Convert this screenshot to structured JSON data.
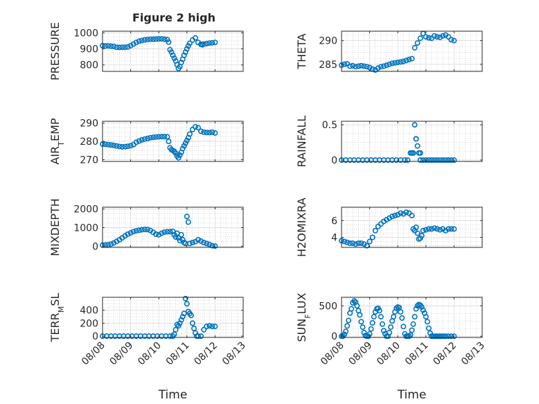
{
  "figure_title": "Figure 2 high",
  "colors": {
    "marker": "#0072BD",
    "axes": "#262626",
    "grid": "#bfbfbf",
    "background": "#ffffff"
  },
  "x_axis": {
    "label": "Time",
    "ticks": [
      "08/08",
      "08/09",
      "08/10",
      "08/11",
      "08/12",
      "08/13"
    ],
    "tick_values": [
      0,
      1,
      2,
      3,
      4,
      5
    ],
    "range": [
      0,
      5
    ]
  },
  "chart_data": [
    {
      "type": "scatter",
      "title": "Figure 2 high",
      "ylabel": "PRESSURE",
      "ylabel_sub": null,
      "ylim": [
        760,
        1010
      ],
      "yticks": [
        800,
        900,
        1000
      ],
      "grid": true,
      "marker": "open-circle",
      "x": [
        0.0,
        0.1,
        0.2,
        0.3,
        0.4,
        0.5,
        0.6,
        0.7,
        0.8,
        0.9,
        1.0,
        1.1,
        1.2,
        1.3,
        1.4,
        1.5,
        1.6,
        1.7,
        1.8,
        1.9,
        2.0,
        2.1,
        2.2,
        2.3,
        2.35,
        2.4,
        2.45,
        2.5,
        2.55,
        2.6,
        2.65,
        2.7,
        2.75,
        2.8,
        2.85,
        2.9,
        2.95,
        3.0,
        3.05,
        3.1,
        3.2,
        3.3,
        3.4,
        3.5,
        3.55,
        3.6,
        3.7,
        3.8,
        3.9,
        4.0
      ],
      "y": [
        920,
        918,
        919,
        917,
        915,
        910,
        909,
        910,
        910,
        912,
        920,
        930,
        940,
        948,
        952,
        956,
        958,
        960,
        960,
        961,
        962,
        962,
        960,
        958,
        942,
        895,
        880,
        860,
        842,
        825,
        802,
        778,
        790,
        815,
        835,
        860,
        880,
        900,
        918,
        935,
        955,
        968,
        940,
        928,
        925,
        930,
        933,
        936,
        938,
        940
      ]
    },
    {
      "type": "scatter",
      "ylabel": "THETA",
      "ylabel_sub": null,
      "ylim": [
        283.5,
        292
      ],
      "yticks": [
        285,
        290
      ],
      "grid": true,
      "marker": "open-circle",
      "x": [
        0.0,
        0.1,
        0.2,
        0.3,
        0.4,
        0.5,
        0.6,
        0.7,
        0.8,
        0.9,
        1.0,
        1.1,
        1.2,
        1.3,
        1.4,
        1.5,
        1.6,
        1.7,
        1.8,
        1.9,
        2.0,
        2.1,
        2.2,
        2.3,
        2.4,
        2.5,
        2.6,
        2.7,
        2.8,
        2.9,
        3.0,
        3.1,
        3.2,
        3.3,
        3.4,
        3.5,
        3.6,
        3.7,
        3.8,
        3.9,
        4.0
      ],
      "y": [
        284.8,
        285.0,
        285.1,
        284.6,
        284.7,
        284.5,
        284.6,
        284.7,
        284.6,
        284.5,
        284.3,
        284.0,
        283.8,
        284.2,
        284.5,
        284.6,
        284.8,
        285.0,
        285.2,
        285.3,
        285.4,
        285.5,
        285.6,
        285.8,
        286.0,
        286.2,
        288.5,
        289.5,
        290.5,
        291.5,
        290.8,
        290.6,
        290.5,
        291.0,
        290.8,
        290.7,
        291.0,
        291.2,
        290.8,
        290.2,
        290.0
      ]
    },
    {
      "type": "scatter",
      "ylabel": "AIR",
      "ylabel_sub": "T",
      "ylabel_suffix": "EMP",
      "ylim": [
        269,
        291
      ],
      "yticks": [
        270,
        280,
        290
      ],
      "grid": true,
      "marker": "open-circle",
      "x": [
        0.0,
        0.1,
        0.2,
        0.3,
        0.4,
        0.5,
        0.6,
        0.7,
        0.8,
        0.9,
        1.0,
        1.1,
        1.2,
        1.3,
        1.4,
        1.5,
        1.6,
        1.7,
        1.8,
        1.9,
        2.0,
        2.1,
        2.2,
        2.3,
        2.35,
        2.4,
        2.45,
        2.5,
        2.55,
        2.6,
        2.65,
        2.7,
        2.75,
        2.8,
        2.85,
        2.9,
        2.95,
        3.0,
        3.05,
        3.1,
        3.2,
        3.3,
        3.4,
        3.5,
        3.6,
        3.7,
        3.8,
        3.9,
        4.0
      ],
      "y": [
        278.5,
        278.4,
        278.2,
        278.0,
        277.8,
        277.5,
        277.2,
        277.0,
        277.1,
        277.3,
        277.6,
        278.2,
        279.5,
        280.2,
        280.8,
        281.2,
        281.6,
        282.0,
        282.2,
        282.4,
        282.5,
        282.6,
        282.6,
        282.5,
        280.0,
        276.5,
        275.5,
        275.0,
        274.5,
        273.5,
        272.0,
        271.0,
        272.5,
        274.0,
        276.0,
        277.5,
        279.0,
        280.5,
        282.0,
        284.0,
        286.5,
        288.0,
        287.5,
        285.5,
        285.0,
        284.8,
        284.8,
        285.0,
        284.6
      ]
    },
    {
      "type": "scatter",
      "ylabel": "RAINFALL",
      "ylabel_sub": null,
      "ylim": [
        -0.02,
        0.55
      ],
      "yticks": [
        0,
        0.5
      ],
      "ytick_labels": [
        "0",
        "0.5"
      ],
      "grid": true,
      "marker": "open-circle",
      "x": [
        0.0,
        0.15,
        0.3,
        0.45,
        0.6,
        0.75,
        0.9,
        1.05,
        1.2,
        1.35,
        1.5,
        1.65,
        1.8,
        1.95,
        2.1,
        2.25,
        2.35,
        2.45,
        2.55,
        2.6,
        2.65,
        2.7,
        2.75,
        2.8,
        2.9,
        3.0,
        3.1,
        3.2,
        3.3,
        3.4,
        3.5,
        3.6,
        3.7,
        3.8,
        3.9,
        4.0,
        2.5,
        2.65,
        2.8
      ],
      "y": [
        0,
        0,
        0,
        0,
        0,
        0,
        0,
        0,
        0,
        0,
        0,
        0,
        0,
        0,
        0,
        0,
        0,
        0.1,
        0.1,
        0.5,
        0.3,
        0.2,
        0.1,
        0,
        0,
        0,
        0,
        0,
        0,
        0,
        0,
        0,
        0,
        0,
        0,
        0,
        0.1,
        0.3,
        0.1
      ]
    },
    {
      "type": "scatter",
      "ylabel": "MIXDEPTH",
      "ylabel_sub": null,
      "ylim": [
        -60,
        2100
      ],
      "yticks": [
        0,
        1000,
        2000
      ],
      "grid": true,
      "marker": "open-circle",
      "x": [
        0.0,
        0.1,
        0.2,
        0.3,
        0.4,
        0.5,
        0.6,
        0.7,
        0.8,
        0.9,
        1.0,
        1.1,
        1.2,
        1.3,
        1.4,
        1.5,
        1.6,
        1.7,
        1.8,
        1.9,
        2.0,
        2.1,
        2.2,
        2.3,
        2.4,
        2.5,
        2.55,
        2.6,
        2.65,
        2.7,
        2.75,
        2.8,
        2.85,
        2.9,
        2.95,
        3.0,
        3.05,
        3.1,
        3.2,
        3.3,
        3.4,
        3.5,
        3.6,
        3.7,
        3.8,
        3.9,
        4.0
      ],
      "y": [
        60,
        70,
        80,
        120,
        180,
        260,
        350,
        450,
        560,
        650,
        720,
        790,
        830,
        860,
        890,
        910,
        900,
        850,
        750,
        650,
        620,
        700,
        760,
        780,
        790,
        800,
        620,
        500,
        700,
        450,
        300,
        620,
        350,
        200,
        150,
        1600,
        1300,
        150,
        200,
        250,
        350,
        280,
        200,
        150,
        100,
        30,
        10
      ]
    },
    {
      "type": "scatter",
      "ylabel": "H2OMIXRA",
      "ylabel_sub": null,
      "ylim": [
        2.8,
        7.6
      ],
      "yticks": [
        4,
        6
      ],
      "grid": true,
      "marker": "open-circle",
      "x": [
        0.0,
        0.1,
        0.2,
        0.3,
        0.4,
        0.5,
        0.6,
        0.7,
        0.8,
        0.9,
        1.0,
        1.1,
        1.2,
        1.3,
        1.4,
        1.5,
        1.6,
        1.7,
        1.8,
        1.9,
        2.0,
        2.1,
        2.2,
        2.3,
        2.4,
        2.5,
        2.55,
        2.6,
        2.65,
        2.7,
        2.75,
        2.8,
        2.85,
        2.9,
        3.0,
        3.1,
        3.2,
        3.3,
        3.4,
        3.5,
        3.6,
        3.7,
        3.8,
        3.9,
        4.0
      ],
      "y": [
        3.6,
        3.5,
        3.4,
        3.3,
        3.3,
        3.2,
        3.3,
        3.3,
        3.2,
        3.0,
        3.5,
        4.0,
        4.8,
        5.3,
        5.6,
        5.9,
        6.1,
        6.3,
        6.5,
        6.6,
        6.7,
        6.9,
        6.8,
        7.0,
        6.9,
        6.6,
        5.0,
        4.8,
        5.2,
        4.5,
        3.8,
        3.9,
        4.2,
        4.8,
        4.9,
        5.0,
        5.0,
        5.1,
        5.0,
        4.9,
        5.0,
        4.8,
        5.0,
        5.0,
        5.0
      ]
    },
    {
      "type": "scatter",
      "ylabel": "TERR",
      "ylabel_sub": "M",
      "ylabel_suffix": "SL",
      "ylim": [
        -20,
        600
      ],
      "yticks": [
        0,
        200,
        400
      ],
      "grid": true,
      "marker": "open-circle",
      "x": [
        0.0,
        0.15,
        0.3,
        0.45,
        0.6,
        0.75,
        0.9,
        1.05,
        1.2,
        1.35,
        1.5,
        1.65,
        1.8,
        1.95,
        2.1,
        2.25,
        2.4,
        2.5,
        2.55,
        2.6,
        2.65,
        2.7,
        2.75,
        2.8,
        2.85,
        2.9,
        2.95,
        3.0,
        3.05,
        3.1,
        3.15,
        3.2,
        3.25,
        3.3,
        3.35,
        3.4,
        3.5,
        3.6,
        3.7,
        3.8,
        3.9,
        4.0
      ],
      "y": [
        0,
        0,
        0,
        0,
        0,
        0,
        0,
        0,
        0,
        0,
        0,
        0,
        0,
        0,
        0,
        0,
        0,
        0,
        30,
        100,
        180,
        160,
        200,
        250,
        300,
        350,
        580,
        500,
        380,
        350,
        320,
        200,
        120,
        50,
        0,
        0,
        0,
        100,
        150,
        160,
        150,
        150
      ]
    },
    {
      "type": "scatter",
      "ylabel": "SUN",
      "ylabel_sub": "F",
      "ylabel_suffix": "LUX",
      "ylim": [
        -20,
        640
      ],
      "yticks": [
        0,
        500
      ],
      "grid": true,
      "marker": "open-circle",
      "x": [
        0.0,
        0.05,
        0.1,
        0.15,
        0.2,
        0.25,
        0.3,
        0.35,
        0.4,
        0.45,
        0.5,
        0.55,
        0.6,
        0.65,
        0.7,
        0.75,
        0.8,
        0.85,
        0.9,
        0.95,
        1.0,
        1.05,
        1.1,
        1.15,
        1.2,
        1.25,
        1.3,
        1.35,
        1.4,
        1.45,
        1.5,
        1.55,
        1.6,
        1.65,
        1.7,
        1.75,
        1.8,
        1.85,
        1.9,
        1.95,
        2.0,
        2.05,
        2.1,
        2.15,
        2.2,
        2.25,
        2.3,
        2.35,
        2.4,
        2.45,
        2.5,
        2.55,
        2.6,
        2.65,
        2.7,
        2.75,
        2.8,
        2.85,
        2.9,
        2.95,
        3.0,
        3.05,
        3.1,
        3.15,
        3.2,
        3.25,
        3.3,
        3.35,
        3.4,
        3.45,
        3.5,
        3.55,
        3.6,
        3.65,
        3.7,
        3.8,
        3.9,
        4.0
      ],
      "y": [
        0,
        0,
        30,
        80,
        170,
        260,
        380,
        450,
        550,
        580,
        560,
        500,
        420,
        350,
        240,
        150,
        60,
        10,
        0,
        0,
        40,
        120,
        220,
        320,
        400,
        450,
        460,
        420,
        320,
        200,
        90,
        40,
        0,
        0,
        60,
        150,
        250,
        320,
        400,
        460,
        480,
        470,
        400,
        300,
        160,
        40,
        0,
        0,
        0,
        20,
        100,
        200,
        320,
        450,
        500,
        520,
        510,
        480,
        430,
        380,
        320,
        240,
        130,
        50,
        0,
        0,
        0,
        0,
        0,
        0,
        0,
        0,
        0,
        0,
        0,
        0,
        0,
        0
      ]
    }
  ]
}
